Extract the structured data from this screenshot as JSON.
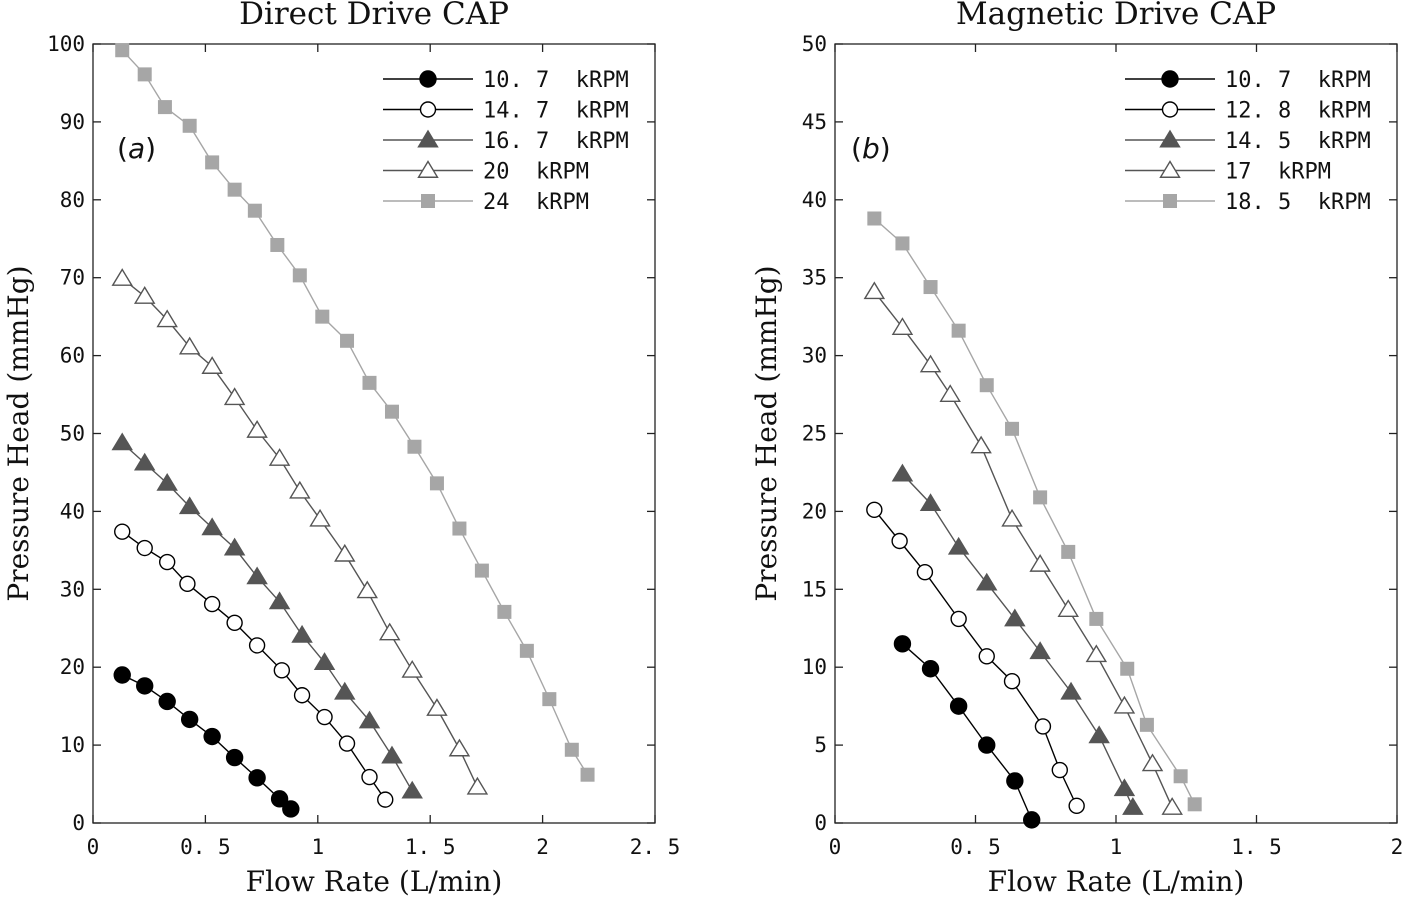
{
  "chart_data": [
    {
      "type": "line",
      "title": "Direct Drive CAP",
      "panel_label": "a",
      "xlabel": "Flow Rate (L/min)",
      "ylabel": "Pressure Head (mmHg)",
      "xlim": [
        0,
        2.5
      ],
      "ylim": [
        0,
        100
      ],
      "xticks": [
        0,
        0.5,
        1,
        1.5,
        2,
        2.5
      ],
      "xtick_labels": [
        "0",
        "0. 5",
        "1",
        "1. 5",
        "2",
        "2. 5"
      ],
      "yticks": [
        0,
        10,
        20,
        30,
        40,
        50,
        60,
        70,
        80,
        90,
        100
      ],
      "ytick_labels": [
        "0",
        "10",
        "20",
        "30",
        "40",
        "50",
        "60",
        "70",
        "80",
        "90",
        "100"
      ],
      "legend_position": "top-right",
      "series": [
        {
          "name": "10. 7  kRPM",
          "marker": "circle-filled",
          "color": "#000000",
          "x": [
            0.13,
            0.23,
            0.33,
            0.43,
            0.53,
            0.63,
            0.73,
            0.83,
            0.88
          ],
          "y": [
            19,
            17.6,
            15.6,
            13.3,
            11.1,
            8.4,
            5.8,
            3.1,
            1.8
          ]
        },
        {
          "name": "14. 7  kRPM",
          "marker": "circle-open",
          "color": "#000000",
          "x": [
            0.13,
            0.23,
            0.33,
            0.42,
            0.53,
            0.63,
            0.73,
            0.84,
            0.93,
            1.03,
            1.13,
            1.23,
            1.3
          ],
          "y": [
            37.4,
            35.3,
            33.5,
            30.7,
            28.1,
            25.7,
            22.8,
            19.6,
            16.4,
            13.6,
            10.2,
            5.9,
            3.0
          ]
        },
        {
          "name": "16. 7  kRPM",
          "marker": "triangle-filled",
          "color": "#555555",
          "x": [
            0.13,
            0.23,
            0.33,
            0.43,
            0.53,
            0.63,
            0.73,
            0.83,
            0.93,
            1.03,
            1.12,
            1.23,
            1.33,
            1.42
          ],
          "y": [
            48.8,
            46.2,
            43.6,
            40.6,
            37.9,
            35.3,
            31.6,
            28.4,
            24.1,
            20.6,
            16.8,
            13.1,
            8.6,
            4.1
          ]
        },
        {
          "name": "20  kRPM",
          "marker": "triangle-open",
          "color": "#555555",
          "x": [
            0.13,
            0.23,
            0.33,
            0.43,
            0.53,
            0.63,
            0.73,
            0.83,
            0.92,
            1.01,
            1.12,
            1.22,
            1.32,
            1.42,
            1.53,
            1.63,
            1.71
          ],
          "y": [
            69.9,
            67.6,
            64.6,
            61.1,
            58.6,
            54.6,
            50.4,
            46.8,
            42.6,
            39.0,
            34.5,
            29.8,
            24.4,
            19.6,
            14.7,
            9.5,
            4.6
          ]
        },
        {
          "name": "24  kRPM",
          "marker": "square-filled",
          "color": "#a6a6a6",
          "x": [
            0.13,
            0.23,
            0.32,
            0.43,
            0.53,
            0.63,
            0.72,
            0.82,
            0.92,
            1.02,
            1.13,
            1.23,
            1.33,
            1.43,
            1.53,
            1.63,
            1.73,
            1.83,
            1.93,
            2.03,
            2.13,
            2.2
          ],
          "y": [
            99.2,
            96.1,
            91.9,
            89.5,
            84.8,
            81.3,
            78.6,
            74.2,
            70.3,
            65.0,
            61.9,
            56.5,
            52.8,
            48.3,
            43.6,
            37.8,
            32.4,
            27.1,
            22.1,
            15.9,
            9.4,
            6.2
          ]
        }
      ]
    },
    {
      "type": "line",
      "title": "Magnetic Drive CAP",
      "panel_label": "b",
      "xlabel": "Flow Rate (L/min)",
      "ylabel": "Pressure Head (mmHg)",
      "xlim": [
        0,
        2
      ],
      "ylim": [
        0,
        50
      ],
      "xticks": [
        0,
        0.5,
        1,
        1.5,
        2
      ],
      "xtick_labels": [
        "0",
        "0. 5",
        "1",
        "1. 5",
        "2"
      ],
      "yticks": [
        0,
        5,
        10,
        15,
        20,
        25,
        30,
        35,
        40,
        45,
        50
      ],
      "ytick_labels": [
        "0",
        "5",
        "10",
        "15",
        "20",
        "25",
        "30",
        "35",
        "40",
        "45",
        "50"
      ],
      "legend_position": "top-right",
      "series": [
        {
          "name": "10. 7  kRPM",
          "marker": "circle-filled",
          "color": "#000000",
          "x": [
            0.24,
            0.34,
            0.44,
            0.54,
            0.64,
            0.7
          ],
          "y": [
            11.5,
            9.9,
            7.5,
            5.0,
            2.7,
            0.2
          ]
        },
        {
          "name": "12. 8  kRPM",
          "marker": "circle-open",
          "color": "#000000",
          "x": [
            0.14,
            0.23,
            0.32,
            0.44,
            0.54,
            0.63,
            0.74,
            0.8,
            0.86
          ],
          "y": [
            20.1,
            18.1,
            16.1,
            13.1,
            10.7,
            9.1,
            6.2,
            3.4,
            1.1
          ]
        },
        {
          "name": "14. 5  kRPM",
          "marker": "triangle-filled",
          "color": "#555555",
          "x": [
            0.24,
            0.34,
            0.44,
            0.54,
            0.64,
            0.73,
            0.84,
            0.94,
            1.03,
            1.06
          ],
          "y": [
            22.4,
            20.5,
            17.7,
            15.4,
            13.1,
            11.0,
            8.4,
            5.6,
            2.2,
            1.0
          ]
        },
        {
          "name": "17  kRPM",
          "marker": "triangle-open",
          "color": "#555555",
          "x": [
            0.14,
            0.24,
            0.34,
            0.41,
            0.52,
            0.63,
            0.73,
            0.83,
            0.93,
            1.03,
            1.13,
            1.2
          ],
          "y": [
            34.1,
            31.8,
            29.4,
            27.5,
            24.2,
            19.5,
            16.6,
            13.7,
            10.8,
            7.5,
            3.8,
            1.0
          ]
        },
        {
          "name": "18. 5  kRPM",
          "marker": "square-filled",
          "color": "#a6a6a6",
          "x": [
            0.14,
            0.24,
            0.34,
            0.44,
            0.54,
            0.63,
            0.73,
            0.83,
            0.93,
            1.04,
            1.11,
            1.23,
            1.28
          ],
          "y": [
            38.8,
            37.2,
            34.4,
            31.6,
            28.1,
            25.3,
            20.9,
            17.4,
            13.1,
            9.9,
            6.3,
            3.0,
            1.2
          ]
        }
      ]
    }
  ]
}
